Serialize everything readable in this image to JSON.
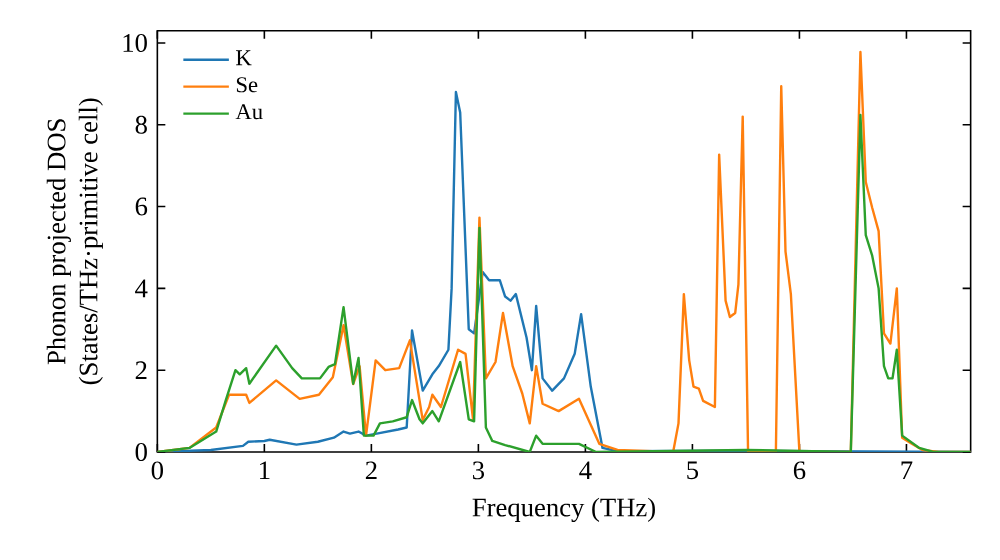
{
  "chart_data": {
    "type": "line",
    "xlabel": "Frequency (THz)",
    "ylabel": "Phonon projected DOS\n(States/THz·primitive cell)",
    "xlim": [
      0,
      7.6
    ],
    "ylim": [
      0,
      10.3
    ],
    "xticks": [
      0,
      1,
      2,
      3,
      4,
      5,
      6,
      7
    ],
    "yticks": [
      0,
      2,
      4,
      6,
      8,
      10
    ],
    "legend": "top left",
    "grid": false,
    "marker": "none",
    "line_style": "solid",
    "series": [
      {
        "name": "K",
        "color": "#1f77b4",
        "x": [
          0,
          0.5,
          0.8,
          0.85,
          1.0,
          1.05,
          1.3,
          1.5,
          1.65,
          1.74,
          1.8,
          1.88,
          1.95,
          2.05,
          2.25,
          2.33,
          2.38,
          2.48,
          2.57,
          2.63,
          2.72,
          2.75,
          2.79,
          2.83,
          2.91,
          2.96,
          3.04,
          3.1,
          3.2,
          3.25,
          3.3,
          3.35,
          3.45,
          3.5,
          3.54,
          3.6,
          3.69,
          3.8,
          3.9,
          3.96,
          4.05,
          4.16,
          4.3,
          5.5,
          7.6
        ],
        "values": [
          0,
          0.05,
          0.15,
          0.25,
          0.27,
          0.3,
          0.18,
          0.25,
          0.35,
          0.5,
          0.45,
          0.5,
          0.4,
          0.45,
          0.55,
          0.6,
          2.97,
          1.5,
          1.9,
          2.1,
          2.5,
          4.0,
          8.8,
          8.3,
          3.0,
          2.9,
          4.4,
          4.2,
          4.2,
          3.8,
          3.7,
          3.86,
          2.8,
          2.0,
          3.57,
          1.8,
          1.5,
          1.8,
          2.4,
          3.37,
          1.6,
          0.1,
          0.02,
          0.03,
          0
        ]
      },
      {
        "name": "Se",
        "color": "#ff7f0e",
        "x": [
          0,
          0.3,
          0.55,
          0.67,
          0.83,
          0.86,
          1.11,
          1.33,
          1.51,
          1.64,
          1.74,
          1.83,
          1.89,
          1.95,
          2.04,
          2.13,
          2.26,
          2.36,
          2.48,
          2.54,
          2.57,
          2.65,
          2.81,
          2.88,
          2.95,
          3.01,
          3.07,
          3.16,
          3.23,
          3.32,
          3.41,
          3.48,
          3.54,
          3.6,
          3.75,
          3.94,
          4.13,
          4.3,
          4.82,
          4.87,
          4.92,
          4.97,
          5.01,
          5.06,
          5.1,
          5.21,
          5.25,
          5.31,
          5.35,
          5.4,
          5.43,
          5.47,
          5.52,
          5.78,
          5.83,
          5.87,
          5.92,
          6.0,
          6.48,
          6.57,
          6.62,
          6.68,
          6.74,
          6.79,
          6.85,
          6.91,
          6.96,
          7.05,
          7.15,
          7.3,
          7.6
        ],
        "values": [
          0,
          0.1,
          0.6,
          1.4,
          1.4,
          1.2,
          1.75,
          1.3,
          1.4,
          1.83,
          3.1,
          1.66,
          2.1,
          0.4,
          2.24,
          2.0,
          2.05,
          2.73,
          0.78,
          1.1,
          1.4,
          1.1,
          2.5,
          2.4,
          0.8,
          5.73,
          1.8,
          2.2,
          3.4,
          2.1,
          1.43,
          0.7,
          2.1,
          1.18,
          1.0,
          1.3,
          0.2,
          0.05,
          0,
          0.7,
          3.86,
          2.24,
          1.6,
          1.55,
          1.25,
          1.1,
          7.27,
          3.7,
          3.3,
          3.4,
          4.1,
          8.2,
          0,
          0,
          8.94,
          4.9,
          3.86,
          0,
          0,
          9.78,
          6.6,
          5.97,
          5.4,
          2.9,
          2.65,
          4.0,
          0.35,
          0.2,
          0.05,
          0,
          0
        ]
      },
      {
        "name": "Au",
        "color": "#2ca02c",
        "x": [
          0,
          0.3,
          0.55,
          0.64,
          0.73,
          0.77,
          0.83,
          0.86,
          1.11,
          1.26,
          1.35,
          1.52,
          1.6,
          1.66,
          1.74,
          1.83,
          1.88,
          1.93,
          2.02,
          2.08,
          2.2,
          2.33,
          2.38,
          2.45,
          2.48,
          2.57,
          2.63,
          2.83,
          2.91,
          2.96,
          3.01,
          3.07,
          3.13,
          3.25,
          3.48,
          3.54,
          3.6,
          3.94,
          4.1,
          5.5,
          6.48,
          6.57,
          6.62,
          6.68,
          6.74,
          6.79,
          6.83,
          6.87,
          6.91,
          6.96,
          7.12,
          7.25,
          7.6
        ],
        "values": [
          0,
          0.1,
          0.5,
          1.27,
          2.0,
          1.9,
          2.05,
          1.67,
          2.6,
          2.05,
          1.8,
          1.8,
          2.08,
          2.15,
          3.54,
          1.67,
          2.3,
          0.4,
          0.4,
          0.7,
          0.75,
          0.85,
          1.27,
          0.8,
          0.7,
          1.0,
          0.75,
          2.2,
          0.8,
          0.75,
          5.48,
          0.6,
          0.27,
          0.17,
          0,
          0.4,
          0.2,
          0.2,
          0,
          0.05,
          0,
          8.24,
          5.3,
          4.8,
          4.0,
          2.1,
          1.8,
          1.8,
          2.5,
          0.4,
          0.1,
          0,
          0
        ]
      }
    ]
  }
}
